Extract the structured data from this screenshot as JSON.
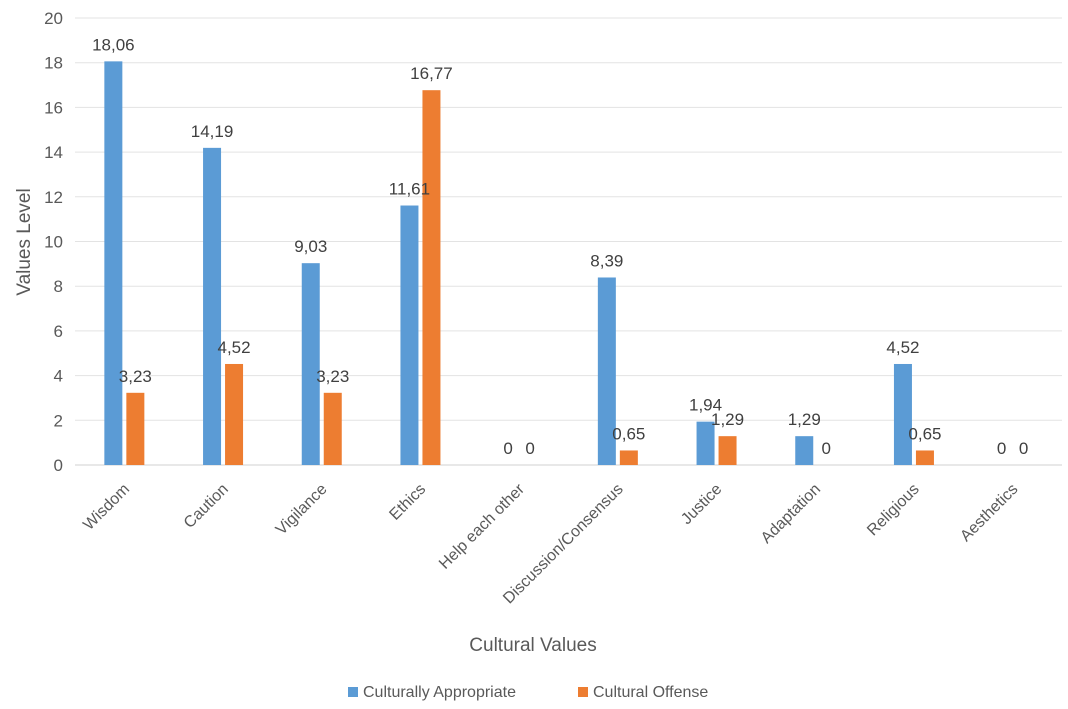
{
  "chart_data": {
    "type": "bar",
    "title": "",
    "xlabel": "Cultural Values",
    "ylabel": "Values Level",
    "ylim": [
      0,
      20
    ],
    "yticks": [
      0,
      2,
      4,
      6,
      8,
      10,
      12,
      14,
      16,
      18,
      20
    ],
    "grid": true,
    "legend_position": "bottom",
    "categories": [
      "Wisdom",
      "Caution",
      "Vigilance",
      "Ethics",
      "Help each other",
      "Discussion/Consensus",
      "Justice",
      "Adaptation",
      "Religious",
      "Aesthetics"
    ],
    "series": [
      {
        "name": "Culturally Appropriate",
        "color": "#5B9BD5",
        "values": [
          18.06,
          14.19,
          9.03,
          11.61,
          0,
          8.39,
          1.94,
          1.29,
          4.52,
          0
        ],
        "labels": [
          "18,06",
          "14,19",
          "9,03",
          "11,61",
          "0",
          "8,39",
          "1,94",
          "1,29",
          "4,52",
          "0"
        ]
      },
      {
        "name": "Cultural Offense",
        "color": "#ED7D31",
        "values": [
          3.23,
          4.52,
          3.23,
          16.77,
          0,
          0.65,
          1.29,
          0,
          0.65,
          0
        ],
        "labels": [
          "3,23",
          "4,52",
          "3,23",
          "16,77",
          "0",
          "0,65",
          "1,29",
          "0",
          "0,65",
          "0"
        ]
      }
    ]
  }
}
